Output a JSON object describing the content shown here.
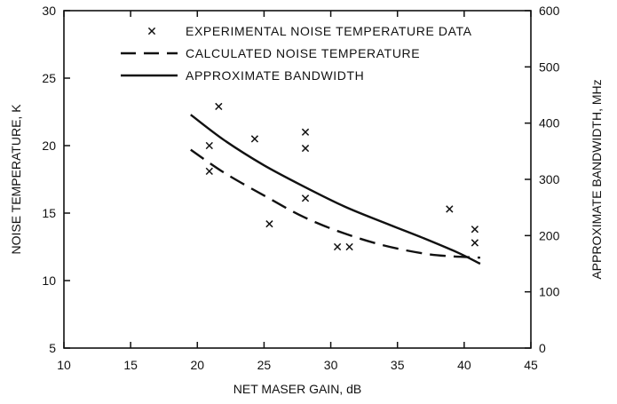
{
  "chart_data": {
    "type": "scatter",
    "xlabel": "NET MASER GAIN, dB",
    "ylabel": "NOISE TEMPERATURE, K",
    "y2label": "APPROXIMATE BANDWIDTH, MHz",
    "xlim": [
      10,
      45
    ],
    "ylim": [
      5,
      30
    ],
    "y2lim": [
      0,
      600
    ],
    "xticks": [
      "10",
      "15",
      "20",
      "25",
      "30",
      "35",
      "40",
      "45"
    ],
    "yticks": [
      "5",
      "10",
      "15",
      "20",
      "25",
      "30"
    ],
    "y2ticks": [
      "0",
      "100",
      "200",
      "300",
      "400",
      "500",
      "600"
    ],
    "grid": false,
    "legend_position": "top",
    "series": [
      {
        "name": "EXPERIMENTAL NOISE TEMPERATURE DATA",
        "style": "x-markers",
        "axis": "left",
        "points": [
          {
            "x": 20.9,
            "y": 20.0
          },
          {
            "x": 20.9,
            "y": 18.1
          },
          {
            "x": 21.6,
            "y": 22.9
          },
          {
            "x": 24.3,
            "y": 20.5
          },
          {
            "x": 25.4,
            "y": 14.2
          },
          {
            "x": 28.1,
            "y": 21.0
          },
          {
            "x": 28.1,
            "y": 19.8
          },
          {
            "x": 28.1,
            "y": 16.1
          },
          {
            "x": 30.5,
            "y": 12.5
          },
          {
            "x": 31.4,
            "y": 12.5
          },
          {
            "x": 38.9,
            "y": 15.3
          },
          {
            "x": 40.8,
            "y": 13.8
          },
          {
            "x": 40.8,
            "y": 12.8
          }
        ]
      },
      {
        "name": "CALCULATED NOISE TEMPERATURE",
        "style": "dashed-line",
        "axis": "left",
        "points": [
          {
            "x": 19.5,
            "y": 19.7
          },
          {
            "x": 22,
            "y": 18.0
          },
          {
            "x": 25,
            "y": 16.3
          },
          {
            "x": 28,
            "y": 14.7
          },
          {
            "x": 31,
            "y": 13.5
          },
          {
            "x": 34,
            "y": 12.6
          },
          {
            "x": 37,
            "y": 12.0
          },
          {
            "x": 39,
            "y": 11.8
          },
          {
            "x": 41.2,
            "y": 11.7
          }
        ]
      },
      {
        "name": "APPROXIMATE BANDWIDTH",
        "style": "solid-line",
        "axis": "right",
        "points": [
          {
            "x": 19.5,
            "y": 415
          },
          {
            "x": 22,
            "y": 370
          },
          {
            "x": 25,
            "y": 325
          },
          {
            "x": 28,
            "y": 287
          },
          {
            "x": 31,
            "y": 252
          },
          {
            "x": 34,
            "y": 223
          },
          {
            "x": 37,
            "y": 195
          },
          {
            "x": 39.5,
            "y": 170
          },
          {
            "x": 41.2,
            "y": 150
          }
        ]
      }
    ]
  }
}
